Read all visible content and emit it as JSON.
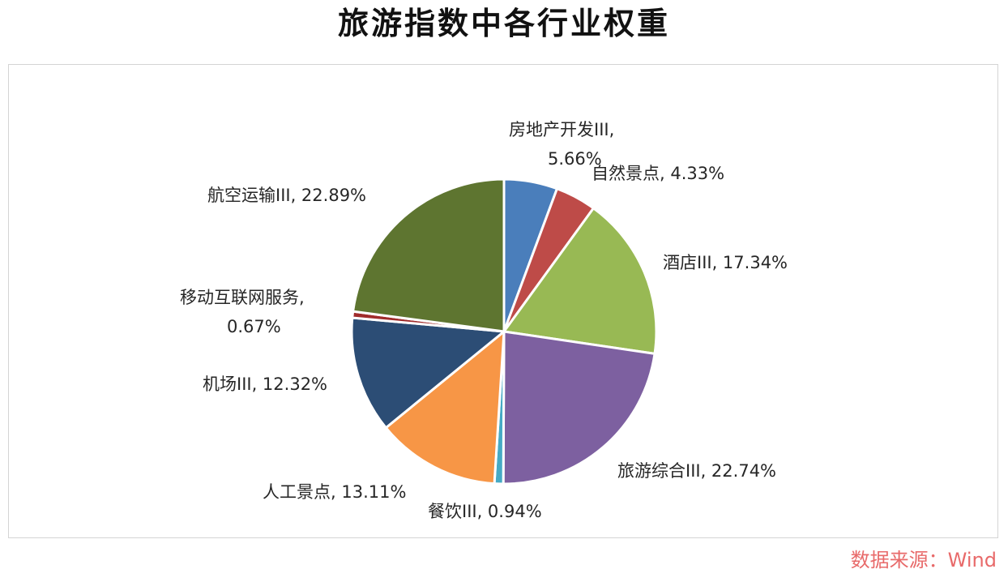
{
  "source_note": "数据来源：Wind",
  "chart_data": {
    "type": "pie",
    "title": "旅游指数中各行业权重",
    "slices": [
      {
        "label": "房地产开发III",
        "value": 5.66,
        "display": "5.66%",
        "color": "#4a7ebb"
      },
      {
        "label": "自然景点",
        "value": 4.33,
        "display": "4.33%",
        "color": "#be4b48"
      },
      {
        "label": "酒店III",
        "value": 17.34,
        "display": "17.34%",
        "color": "#98b954"
      },
      {
        "label": "旅游综合III",
        "value": 22.74,
        "display": "22.74%",
        "color": "#7d60a0"
      },
      {
        "label": "餐饮III",
        "value": 0.94,
        "display": "0.94%",
        "color": "#46aac5"
      },
      {
        "label": "人工景点",
        "value": 13.11,
        "display": "13.11%",
        "color": "#f79646"
      },
      {
        "label": "机场III",
        "value": 12.32,
        "display": "12.32%",
        "color": "#2c4d75"
      },
      {
        "label": "移动互联网服务",
        "value": 0.67,
        "display": "0.67%",
        "color": "#a02b2b"
      },
      {
        "label": "航空运输III",
        "value": 22.89,
        "display": "22.89%",
        "color": "#5e7530"
      }
    ]
  }
}
